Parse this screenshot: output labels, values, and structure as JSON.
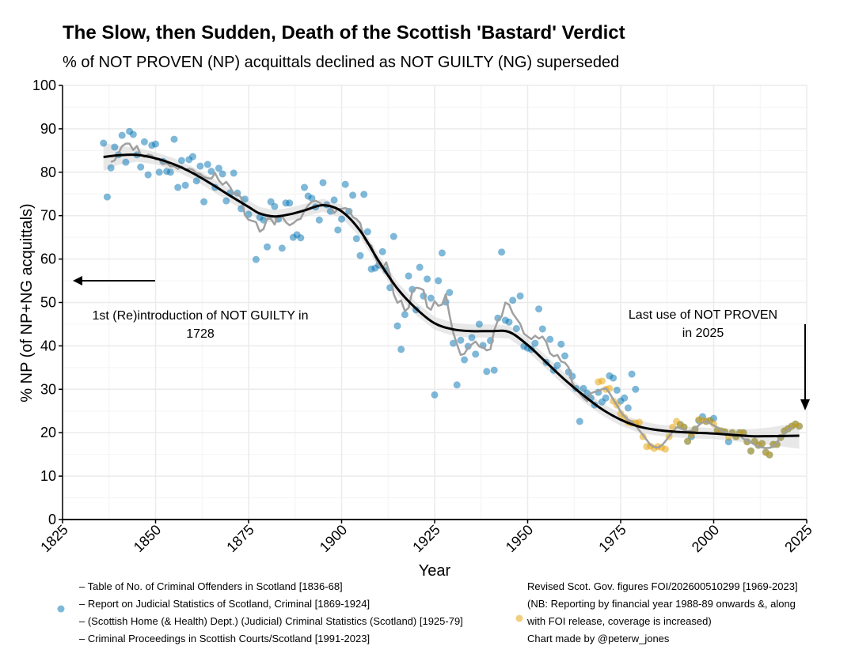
{
  "chart_data": {
    "type": "scatter",
    "title": "The Slow, then Sudden, Death of the Scottish 'Bastard' Verdict",
    "subtitle": "% of NOT PROVEN (NP) acquittals declined as NOT GUILTY (NG) superseded",
    "xlabel": "Year",
    "ylabel": "% NP (of NP+NG acquittals)",
    "xlim": [
      1825,
      2025
    ],
    "ylim": [
      0,
      100
    ],
    "xticks": [
      1825,
      1850,
      1875,
      1900,
      1925,
      1950,
      1975,
      2000,
      2025
    ],
    "yticks": [
      0,
      10,
      20,
      30,
      40,
      50,
      60,
      70,
      80,
      90,
      100
    ],
    "grid": true,
    "legend_position": "bottom",
    "colors": {
      "official": "#0072B2",
      "foi": "#E69F00",
      "smooth": "#000000",
      "moving_average": "#A0A0A0",
      "ribbon": "#D9D9D9"
    },
    "series": [
      {
        "name": "– Table of No. of Criminal Offenders in Scotland [1836-68]\n– Report on Judicial Statistics of Scotland, Criminal [1869-1924]\n– (Scottish Home (& Health) Dept.) (Judicial) Criminal Statistics (Scotland) [1925-79]\n– Criminal Proceedings in Scottish Courts/Scotland [1991-2023]",
        "color": "#0072B2",
        "points": [
          [
            1836,
            86.7
          ],
          [
            1837,
            74.3
          ],
          [
            1838,
            81.0
          ],
          [
            1839,
            85.8
          ],
          [
            1840,
            84.0
          ],
          [
            1841,
            88.5
          ],
          [
            1842,
            82.3
          ],
          [
            1843,
            89.4
          ],
          [
            1844,
            88.7
          ],
          [
            1845,
            84.0
          ],
          [
            1846,
            81.2
          ],
          [
            1847,
            87.0
          ],
          [
            1848,
            79.4
          ],
          [
            1849,
            86.2
          ],
          [
            1850,
            86.5
          ],
          [
            1851,
            80.0
          ],
          [
            1852,
            82.5
          ],
          [
            1853,
            80.2
          ],
          [
            1854,
            80.0
          ],
          [
            1855,
            87.6
          ],
          [
            1856,
            76.5
          ],
          [
            1857,
            82.7
          ],
          [
            1858,
            77.0
          ],
          [
            1859,
            82.9
          ],
          [
            1860,
            83.6
          ],
          [
            1861,
            78.0
          ],
          [
            1862,
            81.4
          ],
          [
            1863,
            73.2
          ],
          [
            1864,
            81.8
          ],
          [
            1865,
            80.2
          ],
          [
            1866,
            76.5
          ],
          [
            1867,
            80.9
          ],
          [
            1868,
            79.6
          ],
          [
            1869,
            73.4
          ],
          [
            1870,
            75.2
          ],
          [
            1871,
            79.8
          ],
          [
            1872,
            75.2
          ],
          [
            1873,
            71.6
          ],
          [
            1874,
            73.8
          ],
          [
            1875,
            70.3
          ],
          [
            1877,
            59.9
          ],
          [
            1878,
            69.6
          ],
          [
            1879,
            69.0
          ],
          [
            1880,
            62.8
          ],
          [
            1881,
            73.2
          ],
          [
            1882,
            72.1
          ],
          [
            1883,
            69.2
          ],
          [
            1884,
            62.5
          ],
          [
            1885,
            72.9
          ],
          [
            1886,
            72.9
          ],
          [
            1887,
            65.0
          ],
          [
            1888,
            65.6
          ],
          [
            1889,
            64.9
          ],
          [
            1890,
            76.5
          ],
          [
            1891,
            74.5
          ],
          [
            1892,
            74.0
          ],
          [
            1893,
            72.0
          ],
          [
            1894,
            69.0
          ],
          [
            1895,
            77.6
          ],
          [
            1896,
            72.5
          ],
          [
            1897,
            71.0
          ],
          [
            1898,
            73.6
          ],
          [
            1899,
            66.7
          ],
          [
            1900,
            69.2
          ],
          [
            1901,
            77.2
          ],
          [
            1902,
            71.0
          ],
          [
            1903,
            74.7
          ],
          [
            1904,
            64.7
          ],
          [
            1905,
            60.8
          ],
          [
            1906,
            74.9
          ],
          [
            1907,
            66.3
          ],
          [
            1908,
            57.7
          ],
          [
            1909,
            57.9
          ],
          [
            1910,
            58.6
          ],
          [
            1911,
            61.7
          ],
          [
            1912,
            57.4
          ],
          [
            1913,
            53.4
          ],
          [
            1914,
            65.2
          ],
          [
            1915,
            44.6
          ],
          [
            1916,
            39.2
          ],
          [
            1917,
            47.2
          ],
          [
            1918,
            56.1
          ],
          [
            1919,
            53.0
          ],
          [
            1920,
            48.3
          ],
          [
            1921,
            58.1
          ],
          [
            1922,
            51.5
          ],
          [
            1923,
            55.4
          ],
          [
            1924,
            51.0
          ],
          [
            1925,
            28.7
          ],
          [
            1926,
            55.0
          ],
          [
            1927,
            61.4
          ],
          [
            1928,
            50.1
          ],
          [
            1929,
            52.3
          ],
          [
            1930,
            40.6
          ],
          [
            1931,
            31.0
          ],
          [
            1932,
            41.3
          ],
          [
            1933,
            36.8
          ],
          [
            1934,
            39.9
          ],
          [
            1935,
            41.9
          ],
          [
            1936,
            38.1
          ],
          [
            1937,
            45.0
          ],
          [
            1938,
            40.1
          ],
          [
            1939,
            34.1
          ],
          [
            1940,
            41.2
          ],
          [
            1941,
            34.4
          ],
          [
            1942,
            46.4
          ],
          [
            1943,
            61.6
          ],
          [
            1944,
            45.9
          ],
          [
            1945,
            45.5
          ],
          [
            1946,
            50.5
          ],
          [
            1947,
            44.0
          ],
          [
            1948,
            51.5
          ],
          [
            1949,
            39.9
          ],
          [
            1950,
            39.5
          ],
          [
            1951,
            39.2
          ],
          [
            1952,
            40.6
          ],
          [
            1953,
            48.5
          ],
          [
            1954,
            43.9
          ],
          [
            1955,
            36.2
          ],
          [
            1956,
            41.5
          ],
          [
            1957,
            34.4
          ],
          [
            1958,
            35.5
          ],
          [
            1959,
            40.4
          ],
          [
            1960,
            37.7
          ],
          [
            1961,
            34.0
          ],
          [
            1962,
            33.0
          ],
          [
            1963,
            30.2
          ],
          [
            1964,
            22.6
          ],
          [
            1965,
            30.2
          ],
          [
            1966,
            29.1
          ],
          [
            1967,
            28.0
          ],
          [
            1968,
            26.4
          ],
          [
            1969,
            29.3
          ],
          [
            1970,
            27.1
          ],
          [
            1971,
            28.0
          ],
          [
            1972,
            33.1
          ],
          [
            1973,
            32.6
          ],
          [
            1974,
            29.8
          ],
          [
            1975,
            27.3
          ],
          [
            1976,
            28.0
          ],
          [
            1977,
            25.7
          ],
          [
            1978,
            33.5
          ],
          [
            1979,
            30.0
          ],
          [
            1991,
            21.9
          ],
          [
            1992,
            21.3
          ],
          [
            1993,
            18.0
          ],
          [
            1994,
            19.1
          ],
          [
            1995,
            20.8
          ],
          [
            1996,
            22.8
          ],
          [
            1997,
            23.7
          ],
          [
            1998,
            22.6
          ],
          [
            1999,
            22.8
          ],
          [
            2000,
            23.3
          ],
          [
            2001,
            20.6
          ],
          [
            2002,
            20.4
          ],
          [
            2003,
            20.2
          ],
          [
            2004,
            17.9
          ],
          [
            2005,
            20.0
          ],
          [
            2006,
            19.1
          ],
          [
            2007,
            20.0
          ],
          [
            2008,
            20.0
          ],
          [
            2009,
            17.9
          ],
          [
            2010,
            15.8
          ],
          [
            2011,
            18.0
          ],
          [
            2012,
            17.1
          ],
          [
            2013,
            17.5
          ],
          [
            2014,
            15.5
          ],
          [
            2015,
            14.9
          ],
          [
            2016,
            17.3
          ],
          [
            2017,
            17.3
          ],
          [
            2018,
            18.9
          ],
          [
            2019,
            20.4
          ],
          [
            2020,
            20.9
          ],
          [
            2021,
            21.5
          ],
          [
            2022,
            22.0
          ],
          [
            2023,
            21.5
          ]
        ]
      },
      {
        "name": "Revised Scot. Gov. figures FOI/202600510299 [1969-2023]\n(NB: Reporting by financial year 1988-89 onwards &, along\nwith FOI release, coverage is increased)\nChart made by @peterw_jones",
        "color": "#E69F00",
        "points": [
          [
            1969,
            31.7
          ],
          [
            1970,
            31.9
          ],
          [
            1971,
            30.0
          ],
          [
            1972,
            30.2
          ],
          [
            1973,
            27.3
          ],
          [
            1974,
            26.4
          ],
          [
            1975,
            24.4
          ],
          [
            1976,
            23.5
          ],
          [
            1977,
            22.4
          ],
          [
            1978,
            22.2
          ],
          [
            1979,
            22.2
          ],
          [
            1980,
            22.4
          ],
          [
            1981,
            19.1
          ],
          [
            1982,
            16.8
          ],
          [
            1983,
            16.9
          ],
          [
            1984,
            16.4
          ],
          [
            1985,
            16.8
          ],
          [
            1986,
            16.6
          ],
          [
            1987,
            16.2
          ],
          [
            1988,
            19.1
          ],
          [
            1989,
            21.3
          ],
          [
            1990,
            22.6
          ],
          [
            1991,
            21.9
          ],
          [
            1992,
            21.3
          ],
          [
            1993,
            18.0
          ],
          [
            1994,
            19.5
          ],
          [
            1995,
            20.8
          ],
          [
            1996,
            23.0
          ],
          [
            1997,
            22.8
          ],
          [
            1998,
            22.6
          ],
          [
            1999,
            22.8
          ],
          [
            2000,
            22.0
          ],
          [
            2001,
            20.6
          ],
          [
            2002,
            20.4
          ],
          [
            2003,
            20.2
          ],
          [
            2004,
            19.1
          ],
          [
            2005,
            20.0
          ],
          [
            2006,
            19.1
          ],
          [
            2007,
            20.0
          ],
          [
            2008,
            20.0
          ],
          [
            2009,
            17.9
          ],
          [
            2010,
            15.8
          ],
          [
            2011,
            18.0
          ],
          [
            2012,
            17.1
          ],
          [
            2013,
            17.5
          ],
          [
            2014,
            15.5
          ],
          [
            2015,
            14.9
          ],
          [
            2016,
            17.3
          ],
          [
            2017,
            17.3
          ],
          [
            2018,
            18.9
          ],
          [
            2019,
            20.4
          ],
          [
            2020,
            20.9
          ],
          [
            2021,
            21.5
          ],
          [
            2022,
            22.0
          ],
          [
            2023,
            21.5
          ]
        ]
      }
    ],
    "smooth": {
      "points": [
        [
          1836,
          83.5
        ],
        [
          1840,
          83.9
        ],
        [
          1845,
          84.0
        ],
        [
          1850,
          83.2
        ],
        [
          1855,
          81.8
        ],
        [
          1860,
          79.8
        ],
        [
          1865,
          77.3
        ],
        [
          1870,
          74.6
        ],
        [
          1875,
          72.0
        ],
        [
          1878,
          70.5
        ],
        [
          1882,
          69.8
        ],
        [
          1886,
          70.3
        ],
        [
          1890,
          71.2
        ],
        [
          1895,
          72.4
        ],
        [
          1900,
          71.0
        ],
        [
          1905,
          66.5
        ],
        [
          1910,
          59.5
        ],
        [
          1915,
          53.2
        ],
        [
          1920,
          48.6
        ],
        [
          1925,
          45.2
        ],
        [
          1930,
          43.8
        ],
        [
          1935,
          43.4
        ],
        [
          1940,
          43.4
        ],
        [
          1945,
          43.2
        ],
        [
          1950,
          40.2
        ],
        [
          1955,
          36.2
        ],
        [
          1960,
          32.2
        ],
        [
          1965,
          28.6
        ],
        [
          1970,
          25.4
        ],
        [
          1975,
          23.0
        ],
        [
          1980,
          21.4
        ],
        [
          1985,
          20.6
        ],
        [
          1990,
          20.2
        ],
        [
          1995,
          20.0
        ],
        [
          2000,
          19.8
        ],
        [
          2005,
          19.5
        ],
        [
          2010,
          19.2
        ],
        [
          2015,
          19.2
        ],
        [
          2023,
          19.3
        ]
      ],
      "ci_halfwidth": [
        3.2,
        2.2,
        1.6,
        1.4,
        1.4,
        1.4,
        1.5,
        1.5,
        1.5,
        1.5,
        1.5,
        1.5,
        1.5,
        1.5,
        1.5,
        1.5,
        1.5,
        1.5,
        1.5,
        1.5,
        1.5,
        1.5,
        1.5,
        1.5,
        1.5,
        1.5,
        1.5,
        1.5,
        1.4,
        1.4,
        1.4,
        1.3,
        1.3,
        1.3,
        1.3,
        1.4,
        1.6,
        2.0,
        3.0
      ]
    },
    "moving_average_window": 5,
    "annotations": [
      {
        "text_lines": [
          "1st (Re)introduction of NOT GUILTY in",
          "1728"
        ],
        "arrow": "left"
      },
      {
        "text_lines": [
          "Last use of NOT PROVEN",
          "in 2025"
        ],
        "arrow": "down"
      }
    ]
  }
}
